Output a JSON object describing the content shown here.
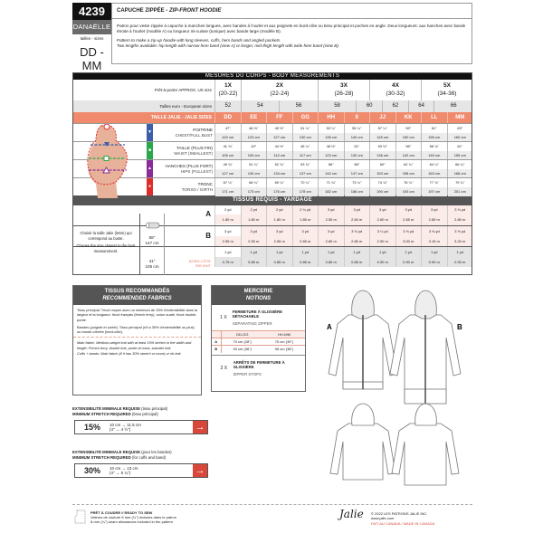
{
  "header": {
    "number": "4239",
    "name": "DANAËLLE",
    "tailles": "tailles - sizes",
    "range": "DD - MM",
    "title_fr": "CAPUCHE ZIPPÉE - ",
    "title_en": "ZIP-FRONT HOODIE",
    "desc_fr": "Patron pour veste zippée à capuche à manches longues, avec bandes à l'ourlet et aux poignets en bord-côte ou tissu principal et poches en angle. Deux longueurs: aux hanches avec bande étroite à l'ourlet (modèle A) ou longueur mi-cuisse (tunique) avec bande large (modèle B).",
    "desc_en1": "Pattern to make a zip-up hoodie with long sleeves, cuffs, hem bands and angled pockets.",
    "desc_en2": "Two lengths available: hip-length with narrow hem band (view A) or longer, mid-thigh length with wide hem band (view B)."
  },
  "measurements": {
    "title": "MESURES DU CORPS - BODY MEASUREMENTS",
    "us_label": "Prêt-à-porter APPROX. US size",
    "us_sizes": [
      {
        "size": "1X",
        "range": "(20-22)"
      },
      {
        "size": "2X",
        "range": "(22-24)"
      },
      {
        "size": "3X",
        "range": "(26-28)"
      },
      {
        "size": "4X",
        "range": "(30-32)"
      },
      {
        "size": "5X",
        "range": "(34-36)"
      }
    ],
    "euro_label": "Tailles euro - European sizes",
    "euro_sizes": [
      "52",
      "54",
      "56",
      "58",
      "60",
      "62",
      "64",
      "66"
    ],
    "jalie_label": "TAILLE JALIE - JALIE SIZES",
    "jalie_sizes": [
      "DD",
      "EE",
      "FF",
      "GG",
      "HH",
      "II",
      "JJ",
      "KK",
      "LL",
      "MM"
    ],
    "rows": [
      {
        "fr": "POITRINE",
        "en": "CHEST/FULL BUST",
        "color": "#3d5ea8",
        "marker": "▼",
        "in": [
          "47\"",
          "48 ½\"",
          "49 ½\"",
          "51 ¼\"",
          "53 ¼\"",
          "55 ¼\"",
          "57 ¼\"",
          "59\"",
          "61\"",
          "63\""
        ],
        "cm": [
          "120 cm",
          "123 cm",
          "127 cm",
          "130 cm",
          "135 cm",
          "140 cm",
          "145 cm",
          "150 cm",
          "155 cm",
          "160 cm"
        ]
      },
      {
        "fr": "TAILLE (PLUS FIN)",
        "en": "WAIST (SMALLEST)",
        "color": "#2aa84a",
        "marker": "■",
        "in": [
          "41 ¾\"",
          "43\"",
          "44 ½\"",
          "46 ¼\"",
          "48 ½\"",
          "51\"",
          "53 ½\"",
          "56\"",
          "58 ¾\"",
          "61\""
        ],
        "cm": [
          "106 cm",
          "109 cm",
          "113 cm",
          "117 cm",
          "123 cm",
          "130 cm",
          "136 cm",
          "142 cm",
          "149 cm",
          "155 cm"
        ]
      },
      {
        "fr": "HANCHES (PLUS FORT)",
        "en": "HIPS (FULLEST)",
        "color": "#8a2b9a",
        "marker": "▲",
        "in": [
          "49 ¾\"",
          "51 ¼\"",
          "52 ¾\"",
          "53 ¾\"",
          "56\"",
          "58\"",
          "60\"",
          "62 ¼\"",
          "64 ¼\"",
          "66 ¼\""
        ],
        "cm": [
          "127 cm",
          "130 cm",
          "134 cm",
          "137 cm",
          "142 cm",
          "147 cm",
          "153 cm",
          "158 cm",
          "163 cm",
          "168 cm"
        ]
      },
      {
        "fr": "TRONC",
        "en": "TORSO / GIRTH",
        "color": "#e02b2b",
        "marker": "●",
        "in": [
          "67 ¼\"",
          "68 ¼\"",
          "69 ¼\"",
          "70 ¼\"",
          "71 ¾\"",
          "73 ¼\"",
          "74 ¾\"",
          "76 ¼\"",
          "77 ¾\"",
          "79 ¼\""
        ],
        "cm": [
          "171 cm",
          "173 cm",
          "176 cm",
          "178 cm",
          "182 cm",
          "186 cm",
          "190 cm",
          "193 cm",
          "197 cm",
          "201 cm"
        ]
      }
    ]
  },
  "yardage": {
    "title": "TISSUS REQUIS - YARDAGE",
    "choose_fr": "Choisir la taille Jalie (lettre) qui correspond au buste.",
    "choose_en": "Choose the size closest to the bust measurement.",
    "main_width": "58\"",
    "main_width_cm": "147 cm",
    "rib_width": "41\"",
    "rib_width_cm": "105 cm",
    "rib_fr": "BORD-CÔTE",
    "rib_en": "RIB KNIT",
    "rows": [
      {
        "label": "A",
        "yd": [
          "2 yd",
          "2 yd",
          "2 yd",
          "2 ¼ yd",
          "3 yd",
          "3 yd",
          "3 yd",
          "3 yd",
          "3 yd",
          "3 ⅛ yd"
        ],
        "m": [
          "1.80 m",
          "1.80 m",
          "1.80 m",
          "1.85 m",
          "2.55 m",
          "2.60 m",
          "2.60 m",
          "2.65 m",
          "2.65 m",
          "2.80 m"
        ]
      },
      {
        "label": "B",
        "yd": [
          "3 yd",
          "3 yd",
          "3 yd",
          "3 yd",
          "3 yd",
          "3 ⅛ yd",
          "3 ¼ yd",
          "3 ⅜ yd",
          "3 ⅜ yd",
          "3 ½ yd"
        ],
        "m": [
          "2.55 m",
          "2.55 m",
          "2.55 m",
          "2.55 m",
          "2.65 m",
          "2.80 m",
          "2.90 m",
          "3.00 m",
          "3.15 m",
          "3.20 m"
        ]
      },
      {
        "label": "",
        "yd": [
          "1 yd",
          "1 yd",
          "1 yd",
          "1 yd",
          "1 yd",
          "1 yd",
          "1 yd",
          "1 yd",
          "1 yd",
          "1 yd"
        ],
        "m": [
          "0.75 m",
          "0.85 m",
          "0.85 m",
          "0.85 m",
          "0.85 m",
          "0.85 m",
          "0.90 m",
          "0.90 m",
          "0.90 m",
          "0.90 m"
        ]
      }
    ]
  },
  "fabrics": {
    "title_fr": "TISSUS RECOMMANDÉS",
    "title_en": "RECOMMENDED FABRICS",
    "p1": "Tissu principal: Tricot moyen avec un minimum de 15% d'extensibilité dans la largeur et la longueur: tricot français (french terry), coton ouaté, tricot double, ponte.",
    "p2": "Bandes (poignet et ourlet): Tissu principal (s'il a 30% d'extensibilité ou plus) ou bande côtelée (bord-côte).",
    "p3": "Main fabric: Medium-weight knit with at least 15% stretch in the width and length: French terry, double knit, ponte di roma, sweater knit.",
    "p4": "Cuffs + bands: Main fabric (if it has 30% stretch or more) or rib knit."
  },
  "notions": {
    "title_fr": "MERCERIE",
    "title_en": "NOTIONS",
    "item1_qty": "1 X",
    "item1_fr": "FERMETURE À GLISSIÈRE DÉTACHABLE",
    "item1_en": "SEPARATING ZIPPER",
    "zip_headers": [
      "",
      "DD-GG",
      "HH-MM"
    ],
    "zip_rows": [
      [
        "A",
        "70 cm (28\")",
        "75 cm (30\")"
      ],
      [
        "B",
        "90 cm (36\")",
        "95 cm (38\")"
      ]
    ],
    "item2_qty": "2 X",
    "item2_fr": "ARRÊTS DE FERMETURE À GLISSIÈRE",
    "item2_en": "ZIPPER STOPS"
  },
  "stretch": [
    {
      "fr": "EXTENSIBILITÉ MINIMALE REQUISE",
      "fr_note": "(tissu principal)",
      "en": "MINIMUM STRETCH REQUIRED",
      "en_note": "(tissu principal)",
      "pct": "15%",
      "cm": "10 cm → 11.5 cm",
      "in": "(4\" → 4 ½\")"
    },
    {
      "fr": "EXTENSIBILITÉ MINIMALE REQUISE",
      "fr_note": "(pour les bandes)",
      "en": "MINIMUM STRETCH REQUIRED",
      "en_note": "(for cuffs and band)",
      "pct": "30%",
      "cm": "10 cm → 13 cm",
      "in": "(4\" → 5 ¼\")"
    }
  ],
  "views": {
    "a": "A",
    "b": "B"
  },
  "footer": {
    "ready": "PRÊT À COUDRE // READY TO SEW",
    "seam_fr": "Valeurs de couture 6 mm (¼\") incluses dans le patron",
    "seam_en": "6-mm (¼\") seam allowances included in the pattern",
    "logo": "Jalie",
    "copyright": "© 2022 LES PATRONS JALIE INC.",
    "url": "www.jalie.com",
    "made": "FAIT AU CANADA / MADE IN CANADA"
  },
  "colors": {
    "accent": "#f08a6c",
    "arrow": "#d9473a",
    "bust": "#3d5ea8",
    "waist": "#2aa84a",
    "hips": "#8a2b9a",
    "torso": "#e02b2b"
  }
}
